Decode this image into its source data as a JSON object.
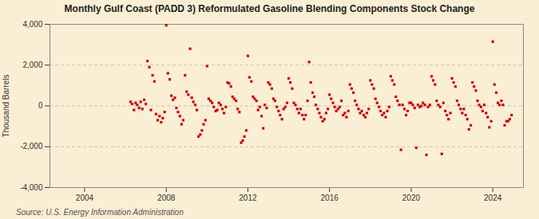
{
  "chart_data": {
    "type": "scatter",
    "title": "Monthly Gulf Coast (PADD 3) Reformulated Gasoline Blending Components Stock Change",
    "y_label": "Thousand Barrels",
    "source": "Source: U.S. Energy Information Administration",
    "color": "#cc0000",
    "marker": "square",
    "grid": "y",
    "xlim": [
      2002.3,
      2025.5
    ],
    "xticks": [
      2004,
      2008,
      2012,
      2016,
      2020,
      2024
    ],
    "ylim": [
      -4000,
      4000
    ],
    "yticks": [
      {
        "value": -4000,
        "label": "-4,000"
      },
      {
        "value": -2000,
        "label": "-2,000"
      },
      0,
      {
        "value": 2000,
        "label": "2,000"
      },
      {
        "value": 4000,
        "label": "4,000"
      }
    ],
    "x": [
      2006.25,
      2006.33,
      2006.42,
      2006.5,
      2006.58,
      2006.67,
      2006.75,
      2006.83,
      2006.92,
      2007.0,
      2007.08,
      2007.17,
      2007.25,
      2007.33,
      2007.42,
      2007.5,
      2007.58,
      2007.67,
      2007.75,
      2007.83,
      2007.92,
      2008.0,
      2008.08,
      2008.17,
      2008.25,
      2008.33,
      2008.42,
      2008.5,
      2008.58,
      2008.67,
      2008.75,
      2008.83,
      2008.92,
      2009.0,
      2009.08,
      2009.17,
      2009.25,
      2009.33,
      2009.42,
      2009.5,
      2009.58,
      2009.67,
      2009.75,
      2009.83,
      2009.92,
      2010.0,
      2010.08,
      2010.17,
      2010.25,
      2010.33,
      2010.42,
      2010.5,
      2010.58,
      2010.67,
      2010.75,
      2010.83,
      2010.92,
      2011.0,
      2011.08,
      2011.17,
      2011.25,
      2011.33,
      2011.42,
      2011.5,
      2011.58,
      2011.67,
      2011.75,
      2011.83,
      2011.92,
      2012.0,
      2012.08,
      2012.17,
      2012.25,
      2012.33,
      2012.42,
      2012.5,
      2012.58,
      2012.67,
      2012.75,
      2012.83,
      2012.92,
      2013.0,
      2013.08,
      2013.17,
      2013.25,
      2013.33,
      2013.42,
      2013.5,
      2013.58,
      2013.67,
      2013.75,
      2013.83,
      2013.92,
      2014.0,
      2014.08,
      2014.17,
      2014.25,
      2014.33,
      2014.42,
      2014.5,
      2014.58,
      2014.67,
      2014.75,
      2014.83,
      2014.92,
      2015.0,
      2015.08,
      2015.17,
      2015.25,
      2015.33,
      2015.42,
      2015.5,
      2015.58,
      2015.67,
      2015.75,
      2015.83,
      2015.92,
      2016.0,
      2016.08,
      2016.17,
      2016.25,
      2016.33,
      2016.42,
      2016.5,
      2016.58,
      2016.67,
      2016.75,
      2016.83,
      2016.92,
      2017.0,
      2017.08,
      2017.17,
      2017.25,
      2017.33,
      2017.42,
      2017.5,
      2017.58,
      2017.67,
      2017.75,
      2017.83,
      2017.92,
      2018.0,
      2018.08,
      2018.17,
      2018.25,
      2018.33,
      2018.42,
      2018.5,
      2018.58,
      2018.67,
      2018.75,
      2018.83,
      2018.92,
      2019.0,
      2019.08,
      2019.17,
      2019.25,
      2019.33,
      2019.42,
      2019.5,
      2019.58,
      2019.67,
      2019.75,
      2019.83,
      2019.92,
      2020.0,
      2020.08,
      2020.17,
      2020.25,
      2020.33,
      2020.42,
      2020.5,
      2020.58,
      2020.67,
      2020.75,
      2020.83,
      2020.92,
      2021.0,
      2021.08,
      2021.17,
      2021.25,
      2021.33,
      2021.42,
      2021.5,
      2021.58,
      2021.67,
      2021.75,
      2021.83,
      2021.92,
      2022.0,
      2022.08,
      2022.17,
      2022.25,
      2022.33,
      2022.42,
      2022.5,
      2022.58,
      2022.67,
      2022.75,
      2022.83,
      2022.92,
      2023.0,
      2023.08,
      2023.17,
      2023.25,
      2023.33,
      2023.42,
      2023.5,
      2023.58,
      2023.67,
      2023.75,
      2023.83,
      2023.92,
      2024.0,
      2024.08,
      2024.17,
      2024.25,
      2024.33,
      2024.42,
      2024.5,
      2024.58,
      2024.67,
      2024.75,
      2024.83,
      2024.92
    ],
    "values": [
      200,
      100,
      -200,
      150,
      50,
      -100,
      200,
      -150,
      300,
      100,
      2200,
      1900,
      -200,
      1500,
      1200,
      -400,
      -700,
      -500,
      -800,
      -600,
      -300,
      3950,
      1600,
      1300,
      500,
      300,
      400,
      -100,
      -300,
      -500,
      -900,
      -700,
      1500,
      700,
      550,
      2800,
      400,
      200,
      50,
      -200,
      -1500,
      -1400,
      -1200,
      -900,
      -700,
      1950,
      350,
      250,
      150,
      -50,
      -250,
      -200,
      150,
      50,
      -150,
      -350,
      -50,
      1150,
      1100,
      950,
      450,
      350,
      250,
      -150,
      -300,
      -1800,
      -1700,
      -1500,
      -1200,
      2450,
      1400,
      1200,
      450,
      350,
      250,
      -200,
      -50,
      -500,
      -1100,
      50,
      -100,
      1150,
      1050,
      850,
      350,
      250,
      -50,
      -250,
      -450,
      -650,
      -150,
      -50,
      150,
      1350,
      1150,
      850,
      150,
      50,
      -150,
      -350,
      -150,
      -450,
      -650,
      -450,
      250,
      2150,
      1150,
      650,
      450,
      50,
      -150,
      -350,
      -550,
      -750,
      -650,
      -350,
      -150,
      550,
      350,
      150,
      -50,
      -250,
      -150,
      -50,
      250,
      -450,
      -350,
      -550,
      -250,
      1050,
      850,
      650,
      250,
      50,
      -150,
      -350,
      -250,
      -450,
      -550,
      -350,
      -150,
      1250,
      1050,
      850,
      350,
      150,
      -50,
      -250,
      -450,
      -350,
      -550,
      -250,
      -50,
      1450,
      1250,
      1050,
      450,
      250,
      50,
      -2150,
      50,
      -150,
      -450,
      -250,
      150,
      150,
      50,
      -100,
      -2050,
      50,
      -50,
      0,
      150,
      50,
      -2400,
      -50,
      50,
      1450,
      1250,
      1050,
      250,
      50,
      -50,
      -2350,
      150,
      -250,
      -450,
      -650,
      -350,
      1350,
      1150,
      950,
      250,
      50,
      -150,
      -350,
      -150,
      -450,
      -650,
      -1150,
      -950,
      1150,
      950,
      750,
      250,
      50,
      -50,
      -250,
      50,
      -350,
      -550,
      -1050,
      -750,
      3150,
      1050,
      650,
      150,
      50,
      250,
      50,
      -950,
      -750,
      -750,
      -650,
      -450
    ]
  }
}
